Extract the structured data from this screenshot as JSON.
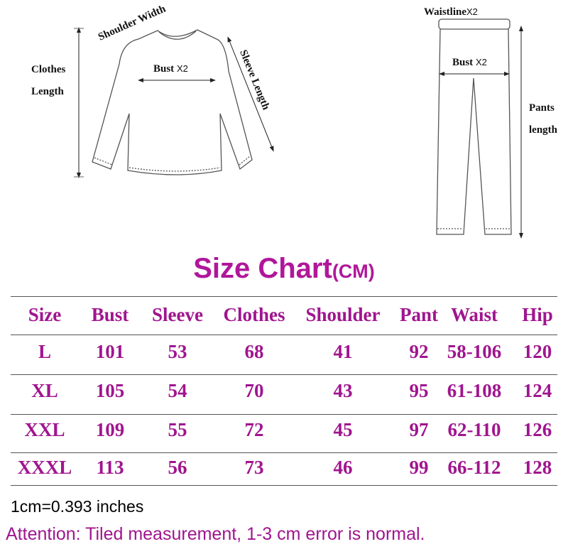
{
  "diagram": {
    "top": {
      "clothes_length": [
        "Clothes",
        "Length"
      ],
      "shoulder_width": "Shoulder Width",
      "bust": "Bust",
      "bust_mult": "X2",
      "sleeve_length": "Sleeve Length"
    },
    "pants": {
      "waistline": "Waistline",
      "waistline_mult": "X2",
      "bust": "Bust",
      "bust_mult": "X2",
      "pants_length": [
        "Pants",
        "length"
      ]
    }
  },
  "title": {
    "main": "Size Chart",
    "unit": "(CM)"
  },
  "accent_color": "#a0158f",
  "table": {
    "headers": [
      "Size",
      "Bust",
      "Sleeve",
      "Clothes",
      "Shoulder",
      "Pant",
      "Waist",
      "Hip"
    ],
    "rows": [
      [
        "L",
        "101",
        "53",
        "68",
        "41",
        "92",
        "58-106",
        "120"
      ],
      [
        "XL",
        "105",
        "54",
        "70",
        "43",
        "95",
        "61-108",
        "124"
      ],
      [
        "XXL",
        "109",
        "55",
        "72",
        "45",
        "97",
        "62-110",
        "126"
      ],
      [
        "XXXL",
        "113",
        "56",
        "73",
        "46",
        "99",
        "66-112",
        "128"
      ]
    ]
  },
  "footer": {
    "conversion": "1cm=0.393 inches",
    "attention": "Attention: Tiled measurement, 1-3 cm error is normal."
  }
}
